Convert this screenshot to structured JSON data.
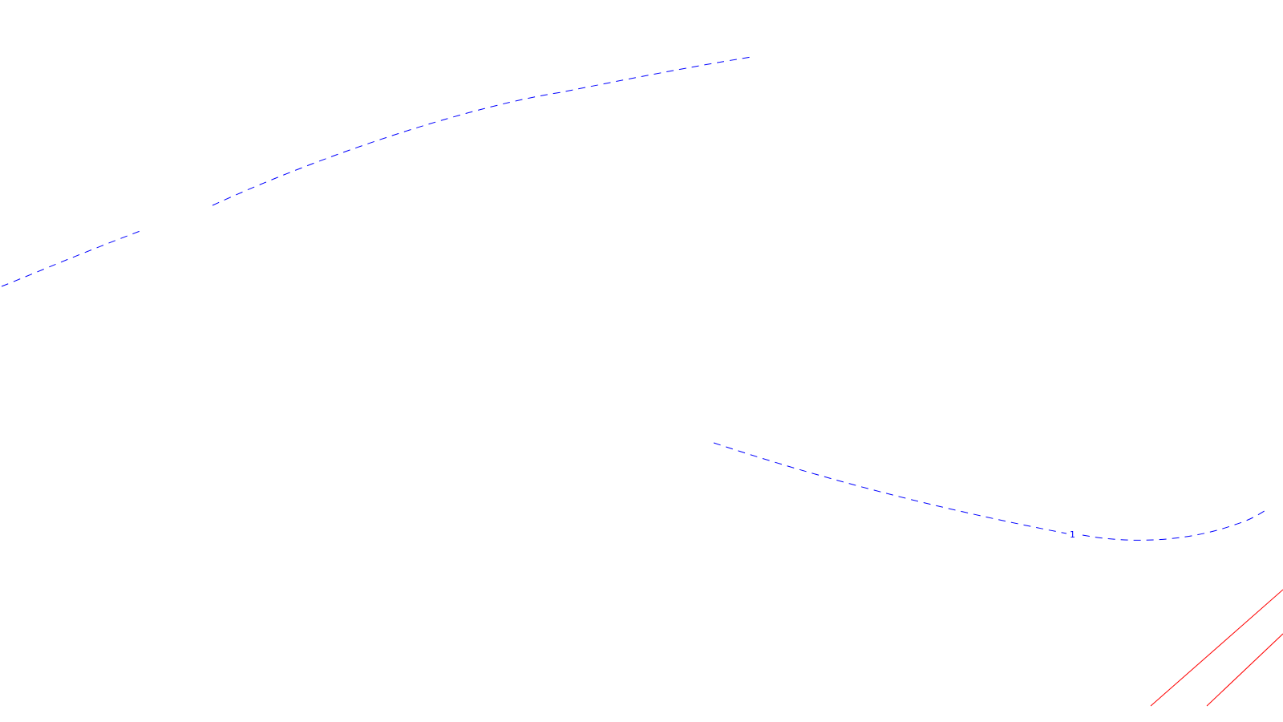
{
  "colors": {
    "background": "#ffffff",
    "contour": "#0000ff",
    "boundary": "#ff0000"
  },
  "labels": {
    "contour_value": "1"
  }
}
